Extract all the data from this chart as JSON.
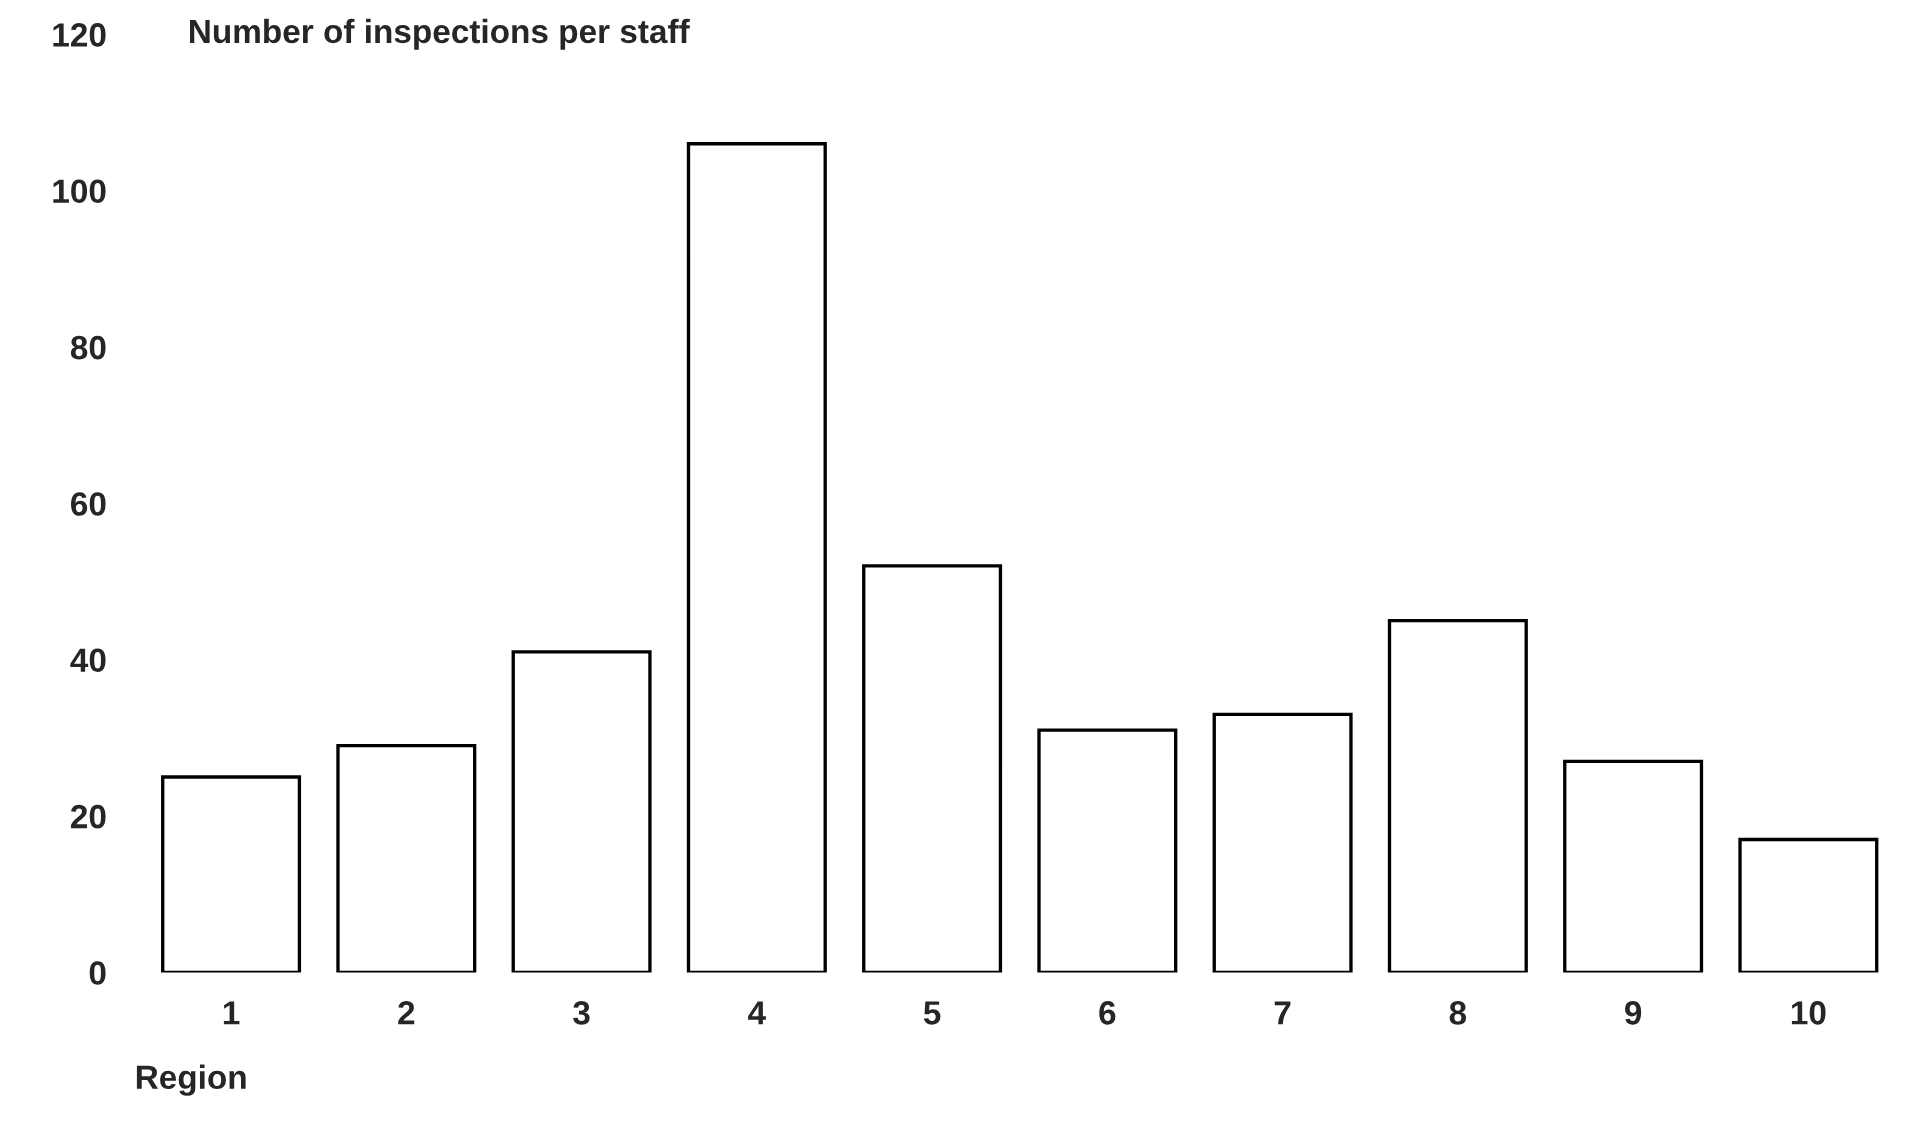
{
  "chart_data": {
    "type": "bar",
    "title": "Number of inspections per staff",
    "xlabel": "Region",
    "categories": [
      "1",
      "2",
      "3",
      "4",
      "5",
      "6",
      "7",
      "8",
      "9",
      "10"
    ],
    "values": [
      25,
      29,
      41,
      106,
      52,
      31,
      33,
      45,
      27,
      17
    ],
    "color": "#ffffff",
    "ylim": [
      0,
      120
    ],
    "yticks": [
      0,
      20,
      40,
      60,
      80,
      100,
      120
    ],
    "grid": false,
    "legend": false
  }
}
